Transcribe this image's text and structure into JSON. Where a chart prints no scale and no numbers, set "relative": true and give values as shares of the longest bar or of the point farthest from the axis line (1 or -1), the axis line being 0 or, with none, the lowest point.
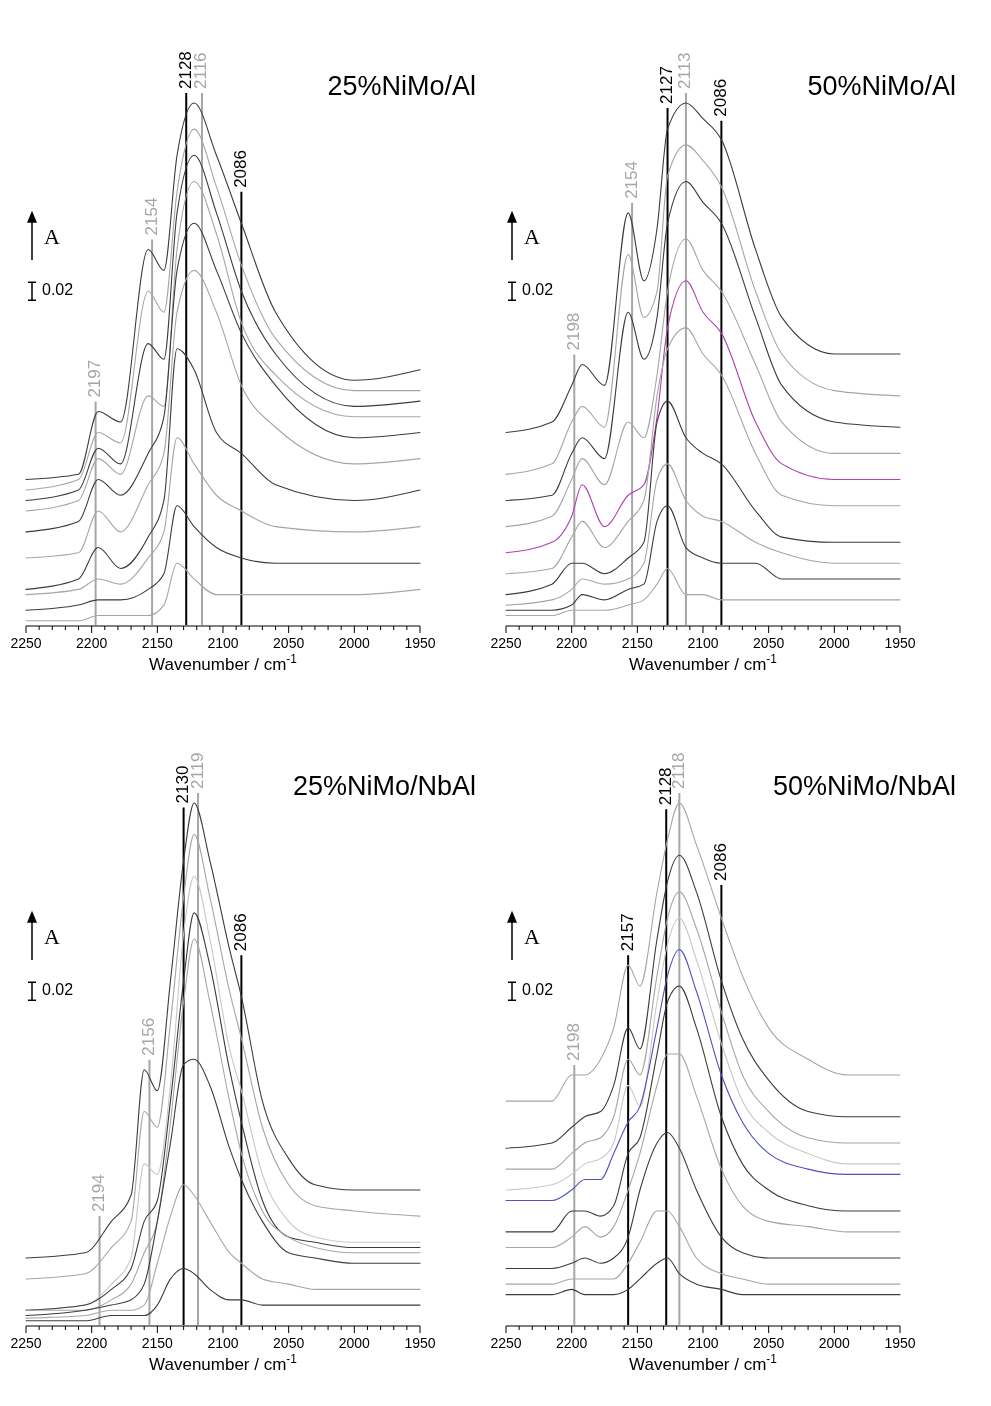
{
  "chart_data": [
    {
      "type": "line",
      "relative": true,
      "title": "25%NiMo/Al",
      "xlabel": "Wavenumber / cm$^{-1}$",
      "xlim": [
        2250,
        1950
      ],
      "xticks": [
        2250,
        {
          "value": 2240,
          "label": null
        },
        {
          "value": 2230,
          "label": null
        },
        {
          "value": 2220,
          "label": null
        },
        {
          "value": 2210,
          "label": null
        },
        2200,
        {
          "value": 2190,
          "label": null
        },
        {
          "value": 2180,
          "label": null
        },
        {
          "value": 2170,
          "label": null
        },
        {
          "value": 2160,
          "label": null
        },
        2150,
        {
          "value": 2140,
          "label": null
        },
        {
          "value": 2130,
          "label": null
        },
        {
          "value": 2120,
          "label": null
        },
        {
          "value": 2110,
          "label": null
        },
        2100,
        {
          "value": 2090,
          "label": null
        },
        {
          "value": 2080,
          "label": null
        },
        {
          "value": 2070,
          "label": null
        },
        {
          "value": 2060,
          "label": null
        },
        2050,
        {
          "value": 2040,
          "label": null
        },
        {
          "value": 2030,
          "label": null
        },
        {
          "value": 2020,
          "label": null
        },
        {
          "value": 2010,
          "label": null
        },
        2000,
        {
          "value": 1990,
          "label": null
        },
        {
          "value": 1980,
          "label": null
        },
        {
          "value": 1970,
          "label": null
        },
        {
          "value": 1960,
          "label": null
        },
        1950
      ],
      "x": [
        2250,
        2210,
        2195,
        2178,
        2157,
        2145,
        2135,
        2122,
        2105,
        2086,
        2060,
        2000,
        1950
      ],
      "series": [
        {
          "color": "#3c3c3c",
          "values": [
            0.28,
            0.29,
            0.41,
            0.39,
            0.72,
            0.68,
            0.9,
            1.0,
            0.9,
            0.77,
            0.6,
            0.47,
            0.49
          ]
        },
        {
          "color": "#a6a6a6",
          "values": [
            0.26,
            0.28,
            0.37,
            0.35,
            0.64,
            0.6,
            0.83,
            0.95,
            0.84,
            0.69,
            0.55,
            0.45,
            0.45
          ]
        },
        {
          "color": "#3c3c3c",
          "values": [
            0.24,
            0.26,
            0.34,
            0.31,
            0.54,
            0.51,
            0.79,
            0.9,
            0.79,
            0.64,
            0.52,
            0.42,
            0.43
          ]
        },
        {
          "color": "#a6a6a6",
          "values": [
            0.22,
            0.24,
            0.32,
            0.29,
            0.44,
            0.42,
            0.72,
            0.85,
            0.75,
            0.58,
            0.48,
            0.4,
            0.4
          ]
        },
        {
          "color": "#3c3c3c",
          "values": [
            0.18,
            0.2,
            0.28,
            0.25,
            0.33,
            0.4,
            0.68,
            0.77,
            0.68,
            0.56,
            0.46,
            0.36,
            0.37
          ]
        },
        {
          "color": "#a6a6a6",
          "values": [
            0.13,
            0.14,
            0.22,
            0.18,
            0.27,
            0.33,
            0.6,
            0.68,
            0.6,
            0.46,
            0.38,
            0.31,
            0.32
          ]
        },
        {
          "color": "#3c3c3c",
          "values": [
            0.07,
            0.09,
            0.15,
            0.11,
            0.17,
            0.24,
            0.53,
            0.49,
            0.37,
            0.33,
            0.27,
            0.24,
            0.26
          ]
        },
        {
          "color": "#a6a6a6",
          "values": [
            0.06,
            0.07,
            0.09,
            0.08,
            0.13,
            0.18,
            0.36,
            0.31,
            0.25,
            0.22,
            0.19,
            0.18,
            0.19
          ]
        },
        {
          "color": "#3c3c3c",
          "values": [
            0.03,
            0.04,
            0.05,
            0.05,
            0.07,
            0.1,
            0.23,
            0.19,
            0.15,
            0.13,
            0.12,
            0.12,
            0.12
          ]
        },
        {
          "color": "#a6a6a6",
          "values": [
            0.01,
            0.01,
            0.02,
            0.02,
            0.02,
            0.04,
            0.12,
            0.09,
            0.06,
            0.06,
            0.06,
            0.06,
            0.07
          ]
        }
      ],
      "ref_lines": [
        {
          "axis": "x",
          "value": 2197,
          "label": "2197",
          "color": "#a6a6a6"
        },
        {
          "axis": "x",
          "value": 2154,
          "label": "2154",
          "color": "#a6a6a6"
        },
        {
          "axis": "x",
          "value": 2128,
          "label": "2128",
          "color": "#000000"
        },
        {
          "axis": "x",
          "value": 2116,
          "label": "2116",
          "color": "#a6a6a6"
        },
        {
          "axis": "x",
          "value": 2086,
          "label": "2086",
          "color": "#000000"
        }
      ],
      "annotations": [
        "A",
        "0.02"
      ]
    },
    {
      "type": "line",
      "relative": true,
      "title": "50%NiMo/Al",
      "xlabel": "Wavenumber / cm$^{-1}$",
      "xlim": [
        2250,
        1950
      ],
      "xticks": [
        2250,
        {
          "value": 2240,
          "label": null
        },
        {
          "value": 2230,
          "label": null
        },
        {
          "value": 2220,
          "label": null
        },
        {
          "value": 2210,
          "label": null
        },
        2200,
        {
          "value": 2190,
          "label": null
        },
        {
          "value": 2180,
          "label": null
        },
        {
          "value": 2170,
          "label": null
        },
        {
          "value": 2160,
          "label": null
        },
        2150,
        {
          "value": 2140,
          "label": null
        },
        {
          "value": 2130,
          "label": null
        },
        {
          "value": 2120,
          "label": null
        },
        {
          "value": 2110,
          "label": null
        },
        2100,
        {
          "value": 2090,
          "label": null
        },
        {
          "value": 2080,
          "label": null
        },
        {
          "value": 2070,
          "label": null
        },
        {
          "value": 2060,
          "label": null
        },
        2050,
        {
          "value": 2040,
          "label": null
        },
        {
          "value": 2030,
          "label": null
        },
        {
          "value": 2020,
          "label": null
        },
        {
          "value": 2010,
          "label": null
        },
        2000,
        {
          "value": 1990,
          "label": null
        },
        {
          "value": 1980,
          "label": null
        },
        {
          "value": 1970,
          "label": null
        },
        {
          "value": 1960,
          "label": null
        },
        1950
      ],
      "x": [
        2250,
        2215,
        2200,
        2192,
        2175,
        2157,
        2145,
        2135,
        2127,
        2113,
        2100,
        2086,
        2060,
        2040,
        2000,
        1950
      ],
      "series": [
        {
          "color": "#3c3c3c",
          "values": [
            0.37,
            0.39,
            0.46,
            0.5,
            0.46,
            0.79,
            0.66,
            0.76,
            0.95,
            1.0,
            0.97,
            0.93,
            0.72,
            0.59,
            0.52,
            0.52
          ]
        },
        {
          "color": "#a6a6a6",
          "values": [
            0.29,
            0.31,
            0.39,
            0.42,
            0.38,
            0.71,
            0.59,
            0.64,
            0.86,
            0.92,
            0.89,
            0.84,
            0.64,
            0.52,
            0.45,
            0.44
          ]
        },
        {
          "color": "#3c3c3c",
          "values": [
            0.24,
            0.25,
            0.33,
            0.36,
            0.32,
            0.6,
            0.51,
            0.59,
            0.77,
            0.85,
            0.81,
            0.77,
            0.59,
            0.46,
            0.39,
            0.38
          ]
        },
        {
          "color": "#a6a6a6",
          "values": [
            0.19,
            0.21,
            0.28,
            0.32,
            0.27,
            0.39,
            0.36,
            0.48,
            0.64,
            0.74,
            0.68,
            0.64,
            0.5,
            0.39,
            0.33,
            0.33
          ]
        },
        {
          "color": "#b040b0",
          "values": [
            0.14,
            0.16,
            0.21,
            0.27,
            0.19,
            0.25,
            0.27,
            0.4,
            0.57,
            0.66,
            0.6,
            0.56,
            0.39,
            0.31,
            0.28,
            0.28
          ]
        },
        {
          "color": "#a6a6a6",
          "values": [
            0.1,
            0.11,
            0.17,
            0.2,
            0.15,
            0.2,
            0.24,
            0.44,
            0.53,
            0.57,
            0.52,
            0.48,
            0.33,
            0.25,
            0.23,
            0.23
          ]
        },
        {
          "color": "#3c3c3c",
          "values": [
            0.06,
            0.08,
            0.12,
            0.12,
            0.1,
            0.13,
            0.16,
            0.39,
            0.43,
            0.36,
            0.33,
            0.31,
            0.22,
            0.17,
            0.16,
            0.16
          ]
        },
        {
          "color": "#a6a6a6",
          "values": [
            0.04,
            0.05,
            0.07,
            0.09,
            0.08,
            0.09,
            0.12,
            0.28,
            0.31,
            0.24,
            0.21,
            0.2,
            0.16,
            0.14,
            0.12,
            0.12
          ]
        },
        {
          "color": "#3c3c3c",
          "values": [
            0.03,
            0.03,
            0.04,
            0.06,
            0.05,
            0.07,
            0.08,
            0.2,
            0.23,
            0.15,
            0.13,
            0.12,
            0.12,
            0.09,
            0.09,
            0.09
          ]
        },
        {
          "color": "#a6a6a6",
          "values": [
            0.02,
            0.02,
            0.03,
            0.03,
            0.03,
            0.04,
            0.05,
            0.08,
            0.11,
            0.06,
            0.06,
            0.05,
            0.05,
            0.05,
            0.05,
            0.05
          ]
        }
      ],
      "ref_lines": [
        {
          "axis": "x",
          "value": 2198,
          "label": "2198",
          "color": "#a6a6a6"
        },
        {
          "axis": "x",
          "value": 2154,
          "label": "2154",
          "color": "#a6a6a6"
        },
        {
          "axis": "x",
          "value": 2127,
          "label": "2127",
          "color": "#000000"
        },
        {
          "axis": "x",
          "value": 2113,
          "label": "2113",
          "color": "#a6a6a6"
        },
        {
          "axis": "x",
          "value": 2086,
          "label": "2086",
          "color": "#000000"
        }
      ],
      "annotations": [
        "A",
        "0.02"
      ]
    },
    {
      "type": "line",
      "relative": true,
      "title": "25%NiMo/NbAl",
      "xlabel": "Wavenumber / cm$^{-1}$",
      "xlim": [
        2250,
        1950
      ],
      "xticks": [
        2250,
        {
          "value": 2240,
          "label": null
        },
        {
          "value": 2230,
          "label": null
        },
        {
          "value": 2220,
          "label": null
        },
        {
          "value": 2210,
          "label": null
        },
        2200,
        {
          "value": 2190,
          "label": null
        },
        {
          "value": 2180,
          "label": null
        },
        {
          "value": 2170,
          "label": null
        },
        {
          "value": 2160,
          "label": null
        },
        2150,
        {
          "value": 2140,
          "label": null
        },
        {
          "value": 2130,
          "label": null
        },
        {
          "value": 2120,
          "label": null
        },
        {
          "value": 2110,
          "label": null
        },
        2100,
        {
          "value": 2090,
          "label": null
        },
        {
          "value": 2080,
          "label": null
        },
        {
          "value": 2070,
          "label": null
        },
        {
          "value": 2060,
          "label": null
        },
        2050,
        {
          "value": 2040,
          "label": null
        },
        {
          "value": 2030,
          "label": null
        },
        {
          "value": 2020,
          "label": null
        },
        {
          "value": 2010,
          "label": null
        },
        2000,
        {
          "value": 1990,
          "label": null
        },
        {
          "value": 1980,
          "label": null
        },
        {
          "value": 1970,
          "label": null
        },
        {
          "value": 1960,
          "label": null
        },
        1950
      ],
      "x": [
        2250,
        2205,
        2185,
        2170,
        2160,
        2150,
        2140,
        2130,
        2122,
        2110,
        2095,
        2086,
        2070,
        2050,
        2030,
        2000,
        1950
      ],
      "series": [
        {
          "color": "#3c3c3c",
          "values": [
            0.13,
            0.14,
            0.2,
            0.25,
            0.49,
            0.45,
            0.66,
            0.89,
            1.0,
            0.89,
            0.72,
            0.63,
            0.43,
            0.32,
            0.27,
            0.26,
            0.26
          ]
        },
        {
          "color": "#a6a6a6",
          "values": [
            0.09,
            0.1,
            0.15,
            0.2,
            0.41,
            0.38,
            0.58,
            0.82,
            0.94,
            0.82,
            0.64,
            0.55,
            0.38,
            0.27,
            0.23,
            0.22,
            0.21
          ]
        },
        {
          "color": "#c8c8c8",
          "values": [
            0.03,
            0.04,
            0.08,
            0.13,
            0.31,
            0.29,
            0.46,
            0.75,
            0.86,
            0.74,
            0.53,
            0.45,
            0.29,
            0.2,
            0.17,
            0.16,
            0.16
          ]
        },
        {
          "color": "#3c3c3c",
          "values": [
            0.03,
            0.04,
            0.07,
            0.11,
            0.2,
            0.24,
            0.43,
            0.66,
            0.79,
            0.69,
            0.49,
            0.39,
            0.24,
            0.17,
            0.16,
            0.15,
            0.15
          ]
        },
        {
          "color": "#a6a6a6",
          "values": [
            0.03,
            0.03,
            0.05,
            0.08,
            0.14,
            0.2,
            0.39,
            0.62,
            0.74,
            0.62,
            0.43,
            0.33,
            0.22,
            0.17,
            0.15,
            0.14,
            0.14
          ]
        },
        {
          "color": "#3c3c3c",
          "values": [
            0.02,
            0.03,
            0.04,
            0.05,
            0.08,
            0.2,
            0.35,
            0.5,
            0.51,
            0.46,
            0.34,
            0.28,
            0.2,
            0.14,
            0.13,
            0.12,
            0.12
          ]
        },
        {
          "color": "#a6a6a6",
          "values": [
            0.015,
            0.02,
            0.03,
            0.03,
            0.04,
            0.12,
            0.21,
            0.27,
            0.25,
            0.2,
            0.14,
            0.12,
            0.09,
            0.08,
            0.07,
            0.07,
            0.07
          ]
        },
        {
          "color": "#3c3c3c",
          "values": [
            0.01,
            0.01,
            0.02,
            0.02,
            0.02,
            0.04,
            0.09,
            0.11,
            0.1,
            0.07,
            0.05,
            0.05,
            0.04,
            0.04,
            0.04,
            0.04,
            0.04
          ]
        }
      ],
      "ref_lines": [
        {
          "axis": "x",
          "value": 2194,
          "label": "2194",
          "color": "#a6a6a6"
        },
        {
          "axis": "x",
          "value": 2156,
          "label": "2156",
          "color": "#a6a6a6"
        },
        {
          "axis": "x",
          "value": 2130,
          "label": "2130",
          "color": "#000000"
        },
        {
          "axis": "x",
          "value": 2119,
          "label": "2119",
          "color": "#a6a6a6"
        },
        {
          "axis": "x",
          "value": 2086,
          "label": "2086",
          "color": "#000000"
        }
      ],
      "annotations": [
        "A",
        "0.02"
      ]
    },
    {
      "type": "line",
      "relative": true,
      "title": "50%NiMo/NbAl",
      "xlabel": "Wavenumber / cm$^{-1}$",
      "xlim": [
        2250,
        1950
      ],
      "xticks": [
        2250,
        {
          "value": 2240,
          "label": null
        },
        {
          "value": 2230,
          "label": null
        },
        {
          "value": 2220,
          "label": null
        },
        {
          "value": 2210,
          "label": null
        },
        2200,
        {
          "value": 2190,
          "label": null
        },
        {
          "value": 2180,
          "label": null
        },
        {
          "value": 2170,
          "label": null
        },
        {
          "value": 2160,
          "label": null
        },
        2150,
        {
          "value": 2140,
          "label": null
        },
        {
          "value": 2130,
          "label": null
        },
        {
          "value": 2120,
          "label": null
        },
        {
          "value": 2110,
          "label": null
        },
        2100,
        {
          "value": 2090,
          "label": null
        },
        {
          "value": 2080,
          "label": null
        },
        {
          "value": 2070,
          "label": null
        },
        {
          "value": 2060,
          "label": null
        },
        2050,
        {
          "value": 2040,
          "label": null
        },
        {
          "value": 2030,
          "label": null
        },
        {
          "value": 2020,
          "label": null
        },
        {
          "value": 2010,
          "label": null
        },
        2000,
        {
          "value": 1990,
          "label": null
        },
        {
          "value": 1980,
          "label": null
        },
        {
          "value": 1970,
          "label": null
        },
        {
          "value": 1960,
          "label": null
        },
        1950
      ],
      "x": [
        2250,
        2215,
        2200,
        2190,
        2178,
        2168,
        2157,
        2148,
        2135,
        2127,
        2118,
        2105,
        2086,
        2070,
        2050,
        2020,
        1990,
        1950
      ],
      "series": [
        {
          "color": "#a6a6a6",
          "values": [
            0.43,
            0.43,
            0.48,
            0.48,
            0.51,
            0.57,
            0.69,
            0.65,
            0.83,
            0.93,
            1.0,
            0.92,
            0.78,
            0.67,
            0.57,
            0.51,
            0.48,
            0.48
          ]
        },
        {
          "color": "#3c3c3c",
          "values": [
            0.34,
            0.35,
            0.38,
            0.4,
            0.41,
            0.46,
            0.57,
            0.53,
            0.74,
            0.85,
            0.9,
            0.83,
            0.66,
            0.55,
            0.47,
            0.41,
            0.4,
            0.4
          ]
        },
        {
          "color": "#a6a6a6",
          "values": [
            0.3,
            0.3,
            0.33,
            0.35,
            0.36,
            0.4,
            0.51,
            0.48,
            0.67,
            0.78,
            0.83,
            0.76,
            0.6,
            0.48,
            0.41,
            0.36,
            0.35,
            0.35
          ]
        },
        {
          "color": "#c8c8c8",
          "values": [
            0.26,
            0.27,
            0.29,
            0.31,
            0.32,
            0.35,
            0.46,
            0.42,
            0.62,
            0.73,
            0.78,
            0.7,
            0.54,
            0.43,
            0.37,
            0.33,
            0.31,
            0.31
          ]
        },
        {
          "color": "#5050c0",
          "values": [
            0.24,
            0.24,
            0.26,
            0.28,
            0.28,
            0.33,
            0.39,
            0.42,
            0.57,
            0.67,
            0.72,
            0.64,
            0.48,
            0.39,
            0.33,
            0.3,
            0.29,
            0.29
          ]
        },
        {
          "color": "#3c3c3c",
          "values": [
            0.18,
            0.18,
            0.22,
            0.22,
            0.21,
            0.23,
            0.33,
            0.36,
            0.52,
            0.62,
            0.65,
            0.57,
            0.4,
            0.31,
            0.26,
            0.23,
            0.22,
            0.22
          ]
        },
        {
          "color": "#a6a6a6",
          "values": [
            0.15,
            0.15,
            0.17,
            0.19,
            0.17,
            0.19,
            0.26,
            0.33,
            0.46,
            0.52,
            0.52,
            0.44,
            0.3,
            0.23,
            0.2,
            0.19,
            0.18,
            0.18
          ]
        },
        {
          "color": "#3c3c3c",
          "values": [
            0.11,
            0.11,
            0.12,
            0.13,
            0.12,
            0.13,
            0.17,
            0.26,
            0.35,
            0.37,
            0.34,
            0.26,
            0.17,
            0.14,
            0.13,
            0.13,
            0.13,
            0.13
          ]
        },
        {
          "color": "#a6a6a6",
          "values": [
            0.08,
            0.08,
            0.09,
            0.09,
            0.09,
            0.09,
            0.12,
            0.16,
            0.22,
            0.22,
            0.19,
            0.13,
            0.1,
            0.09,
            0.08,
            0.08,
            0.08,
            0.08
          ]
        },
        {
          "color": "#3c3c3c",
          "values": [
            0.06,
            0.06,
            0.07,
            0.06,
            0.06,
            0.06,
            0.07,
            0.09,
            0.12,
            0.13,
            0.1,
            0.08,
            0.07,
            0.06,
            0.06,
            0.06,
            0.06,
            0.06
          ]
        }
      ],
      "ref_lines": [
        {
          "axis": "x",
          "value": 2198,
          "label": "2198",
          "color": "#a6a6a6"
        },
        {
          "axis": "x",
          "value": 2157,
          "label": "2157",
          "color": "#000000"
        },
        {
          "axis": "x",
          "value": 2128,
          "label": "2128",
          "color": "#000000"
        },
        {
          "axis": "x",
          "value": 2118,
          "label": "2118",
          "color": "#a6a6a6"
        },
        {
          "axis": "x",
          "value": 2086,
          "label": "2086",
          "color": "#000000"
        }
      ],
      "annotations": [
        "A",
        "0.02"
      ]
    }
  ]
}
